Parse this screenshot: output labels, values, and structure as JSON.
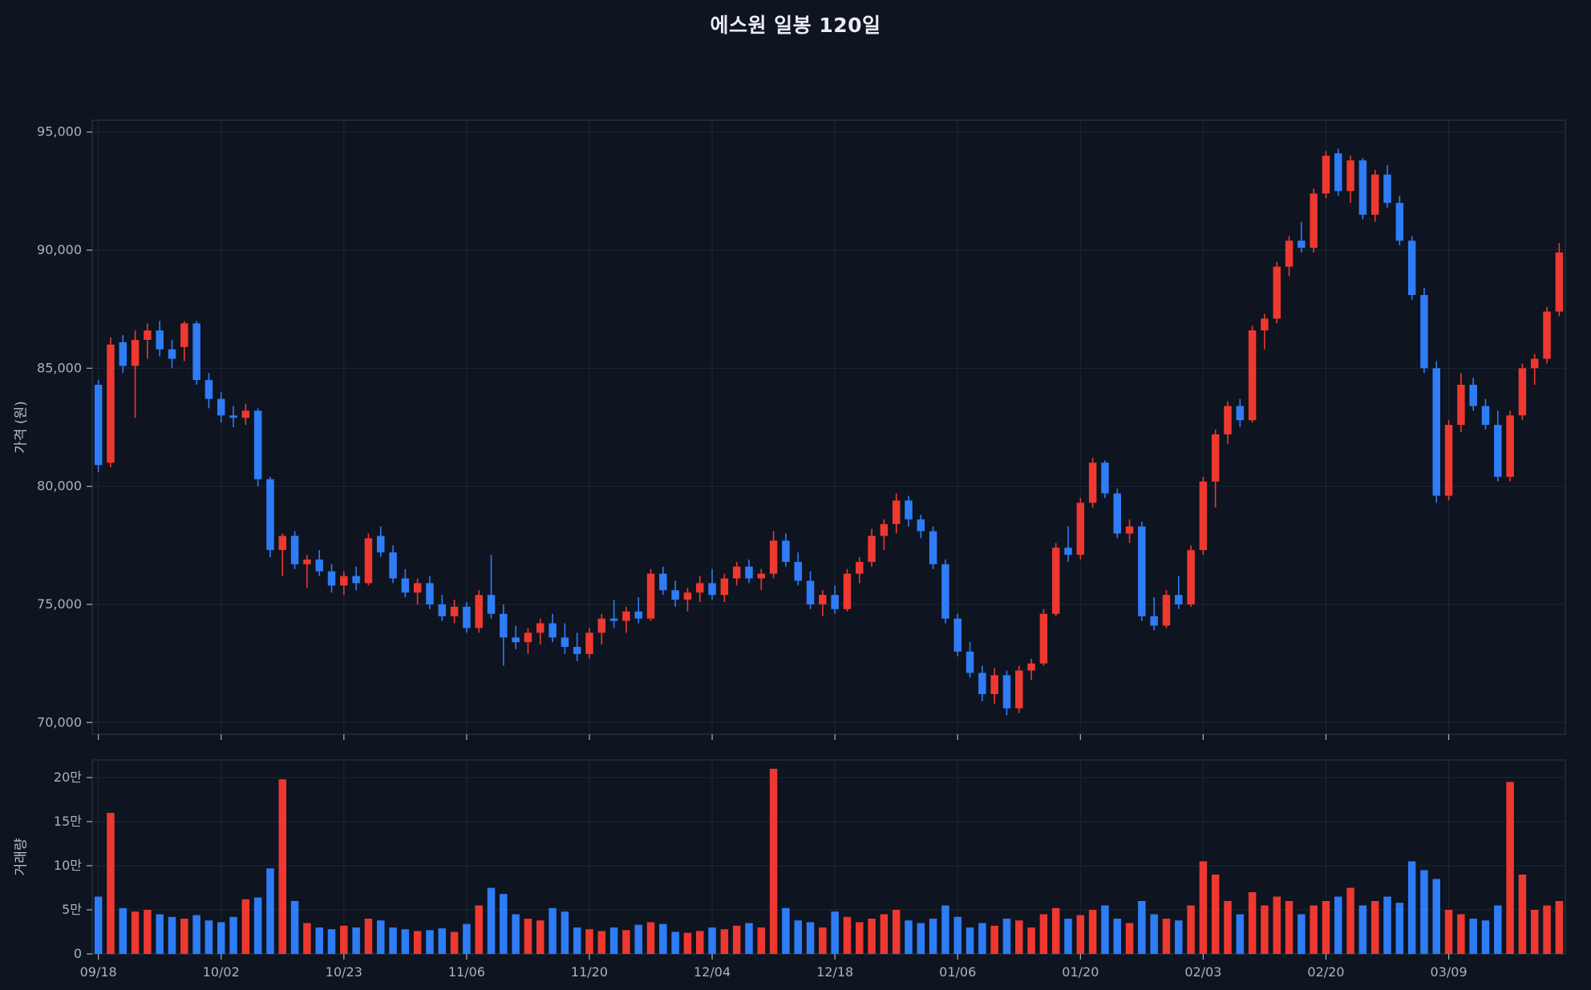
{
  "chart_data": {
    "type": "candlestick",
    "title": "에스원 일봉 120일",
    "price_axis_label": "가격 (원)",
    "volume_axis_label": "거래량",
    "price_ticks": [
      70000,
      75000,
      80000,
      85000,
      90000,
      95000
    ],
    "price_tick_labels": [
      "70,000",
      "75,000",
      "80,000",
      "85,000",
      "90,000",
      "95,000"
    ],
    "volume_ticks": [
      0,
      50000,
      100000,
      150000,
      200000
    ],
    "volume_tick_labels": [
      "0",
      "5만",
      "10만",
      "15만",
      "20만"
    ],
    "x_ticks": [
      {
        "i": 0,
        "label": "09/18"
      },
      {
        "i": 10,
        "label": "10/02"
      },
      {
        "i": 20,
        "label": "10/23"
      },
      {
        "i": 30,
        "label": "11/06"
      },
      {
        "i": 40,
        "label": "11/20"
      },
      {
        "i": 50,
        "label": "12/04"
      },
      {
        "i": 60,
        "label": "12/18"
      },
      {
        "i": 70,
        "label": "01/06"
      },
      {
        "i": 80,
        "label": "01/20"
      },
      {
        "i": 90,
        "label": "02/03"
      },
      {
        "i": 100,
        "label": "02/20"
      },
      {
        "i": 110,
        "label": "03/09"
      }
    ],
    "price_range": [
      69500,
      95500
    ],
    "volume_max": 220000,
    "colors": {
      "up": "#ee3830",
      "down": "#2e7cf6",
      "background": "#0e1420",
      "grid": "#1d2736",
      "spine": "#2a3547",
      "axis_text": "#aab2c0",
      "title_text": "#e9edf3"
    },
    "candle_format": [
      "open",
      "high",
      "low",
      "close",
      "volume"
    ],
    "candles": [
      [
        84300,
        84500,
        80600,
        80900,
        65000
      ],
      [
        81000,
        86300,
        80800,
        86000,
        160000
      ],
      [
        86100,
        86400,
        84800,
        85100,
        52000
      ],
      [
        85100,
        86600,
        82900,
        86200,
        48000
      ],
      [
        86200,
        86900,
        85400,
        86600,
        50000
      ],
      [
        86600,
        87000,
        85500,
        85800,
        45000
      ],
      [
        85800,
        86200,
        85000,
        85400,
        42000
      ],
      [
        85900,
        87000,
        85300,
        86900,
        40000
      ],
      [
        86900,
        87000,
        84300,
        84500,
        44000
      ],
      [
        84500,
        84800,
        83300,
        83700,
        38000
      ],
      [
        83700,
        84000,
        82700,
        83000,
        36000
      ],
      [
        83000,
        83400,
        82500,
        82900,
        42000
      ],
      [
        82900,
        83500,
        82600,
        83200,
        62000
      ],
      [
        83200,
        83300,
        80000,
        80300,
        64000
      ],
      [
        80300,
        80400,
        77000,
        77300,
        97000
      ],
      [
        77300,
        78000,
        76200,
        77900,
        198000
      ],
      [
        77900,
        78100,
        76500,
        76700,
        60000
      ],
      [
        76700,
        77100,
        75700,
        76900,
        35000
      ],
      [
        76900,
        77300,
        76200,
        76400,
        30000
      ],
      [
        76400,
        76700,
        75500,
        75800,
        28000
      ],
      [
        75800,
        76400,
        75400,
        76200,
        32000
      ],
      [
        76200,
        76600,
        75600,
        75900,
        30000
      ],
      [
        75900,
        78000,
        75800,
        77800,
        40000
      ],
      [
        77900,
        78300,
        77000,
        77200,
        38000
      ],
      [
        77200,
        77500,
        75900,
        76100,
        30000
      ],
      [
        76100,
        76500,
        75300,
        75500,
        28000
      ],
      [
        75500,
        76100,
        75000,
        75900,
        26000
      ],
      [
        75900,
        76200,
        74800,
        75000,
        27000
      ],
      [
        75000,
        75400,
        74300,
        74500,
        29000
      ],
      [
        74500,
        75200,
        74200,
        74900,
        25000
      ],
      [
        74900,
        75100,
        73800,
        74000,
        34000
      ],
      [
        74000,
        75600,
        73800,
        75400,
        55000
      ],
      [
        75400,
        77100,
        74400,
        74600,
        75000
      ],
      [
        74600,
        75000,
        72400,
        73600,
        68000
      ],
      [
        73600,
        74100,
        73100,
        73400,
        45000
      ],
      [
        73400,
        74000,
        72900,
        73800,
        40000
      ],
      [
        73800,
        74400,
        73300,
        74200,
        38000
      ],
      [
        74200,
        74600,
        73400,
        73600,
        52000
      ],
      [
        73600,
        74200,
        72900,
        73200,
        48000
      ],
      [
        73200,
        73800,
        72600,
        72900,
        30000
      ],
      [
        72900,
        74000,
        72700,
        73800,
        28000
      ],
      [
        73800,
        74600,
        73300,
        74400,
        26000
      ],
      [
        74400,
        75200,
        74000,
        74300,
        30000
      ],
      [
        74300,
        74900,
        73800,
        74700,
        27000
      ],
      [
        74700,
        75300,
        74200,
        74400,
        33000
      ],
      [
        74400,
        76500,
        74300,
        76300,
        36000
      ],
      [
        76300,
        76600,
        75400,
        75600,
        34000
      ],
      [
        75600,
        76000,
        74900,
        75200,
        25000
      ],
      [
        75200,
        75700,
        74700,
        75500,
        24000
      ],
      [
        75500,
        76200,
        75100,
        75900,
        26000
      ],
      [
        75900,
        76500,
        75200,
        75400,
        30000
      ],
      [
        75400,
        76300,
        75100,
        76100,
        28000
      ],
      [
        76100,
        76800,
        75800,
        76600,
        32000
      ],
      [
        76600,
        76900,
        75900,
        76100,
        35000
      ],
      [
        76100,
        76500,
        75600,
        76300,
        30000
      ],
      [
        76300,
        78100,
        76100,
        77700,
        210000
      ],
      [
        77700,
        78000,
        76600,
        76800,
        52000
      ],
      [
        76800,
        77200,
        75800,
        76000,
        38000
      ],
      [
        76000,
        76400,
        74800,
        75000,
        36000
      ],
      [
        75000,
        75600,
        74500,
        75400,
        30000
      ],
      [
        75400,
        75800,
        74600,
        74800,
        48000
      ],
      [
        74800,
        76500,
        74700,
        76300,
        42000
      ],
      [
        76300,
        77000,
        75900,
        76800,
        36000
      ],
      [
        76800,
        78200,
        76600,
        77900,
        40000
      ],
      [
        77900,
        78600,
        77300,
        78400,
        45000
      ],
      [
        78400,
        79700,
        78000,
        79400,
        50000
      ],
      [
        79400,
        79600,
        78300,
        78600,
        38000
      ],
      [
        78600,
        78800,
        77800,
        78100,
        35000
      ],
      [
        78100,
        78300,
        76500,
        76700,
        40000
      ],
      [
        76700,
        76900,
        74200,
        74400,
        55000
      ],
      [
        74400,
        74600,
        72800,
        73000,
        42000
      ],
      [
        73000,
        73400,
        71900,
        72100,
        30000
      ],
      [
        72100,
        72400,
        70900,
        71200,
        35000
      ],
      [
        71200,
        72300,
        70800,
        72000,
        32000
      ],
      [
        72000,
        72200,
        70300,
        70600,
        40000
      ],
      [
        70600,
        72400,
        70400,
        72200,
        38000
      ],
      [
        72200,
        72700,
        71800,
        72500,
        30000
      ],
      [
        72500,
        74800,
        72400,
        74600,
        45000
      ],
      [
        74600,
        77600,
        74500,
        77400,
        52000
      ],
      [
        77400,
        78300,
        76800,
        77100,
        40000
      ],
      [
        77100,
        79500,
        76900,
        79300,
        44000
      ],
      [
        79300,
        81200,
        79100,
        81000,
        50000
      ],
      [
        81000,
        81100,
        79500,
        79700,
        55000
      ],
      [
        79700,
        79900,
        77800,
        78000,
        40000
      ],
      [
        78000,
        78600,
        77600,
        78300,
        35000
      ],
      [
        78300,
        78500,
        74300,
        74500,
        60000
      ],
      [
        74500,
        75300,
        73900,
        74100,
        45000
      ],
      [
        74100,
        75600,
        74000,
        75400,
        40000
      ],
      [
        75400,
        76200,
        74800,
        75000,
        38000
      ],
      [
        75000,
        77500,
        74900,
        77300,
        55000
      ],
      [
        77300,
        80400,
        77100,
        80200,
        105000
      ],
      [
        80200,
        82400,
        79100,
        82200,
        90000
      ],
      [
        82200,
        83600,
        81800,
        83400,
        60000
      ],
      [
        83400,
        83700,
        82500,
        82800,
        45000
      ],
      [
        82800,
        86800,
        82700,
        86600,
        70000
      ],
      [
        86600,
        87300,
        85800,
        87100,
        55000
      ],
      [
        87100,
        89500,
        86900,
        89300,
        65000
      ],
      [
        89300,
        90600,
        88900,
        90400,
        60000
      ],
      [
        90400,
        91200,
        89900,
        90100,
        45000
      ],
      [
        90100,
        92600,
        89900,
        92400,
        55000
      ],
      [
        92400,
        94200,
        92200,
        94000,
        60000
      ],
      [
        94100,
        94300,
        92300,
        92500,
        65000
      ],
      [
        92500,
        94000,
        92000,
        93800,
        75000
      ],
      [
        93800,
        93900,
        91300,
        91500,
        55000
      ],
      [
        91500,
        93400,
        91200,
        93200,
        60000
      ],
      [
        93200,
        93600,
        91800,
        92000,
        65000
      ],
      [
        92000,
        92300,
        90200,
        90400,
        58000
      ],
      [
        90400,
        90600,
        87900,
        88100,
        105000
      ],
      [
        88100,
        88400,
        84800,
        85000,
        95000
      ],
      [
        85000,
        85300,
        79300,
        79600,
        85000
      ],
      [
        79600,
        82800,
        79400,
        82600,
        50000
      ],
      [
        82600,
        84800,
        82300,
        84300,
        45000
      ],
      [
        84300,
        84600,
        83200,
        83400,
        40000
      ],
      [
        83400,
        83700,
        82400,
        82600,
        38000
      ],
      [
        82600,
        83200,
        80200,
        80400,
        55000
      ],
      [
        80400,
        83200,
        80200,
        83000,
        195000
      ],
      [
        83000,
        85200,
        82800,
        85000,
        90000
      ],
      [
        85000,
        85600,
        84300,
        85400,
        50000
      ],
      [
        85400,
        87600,
        85200,
        87400,
        55000
      ],
      [
        87400,
        90300,
        87200,
        89900,
        60000
      ]
    ]
  }
}
